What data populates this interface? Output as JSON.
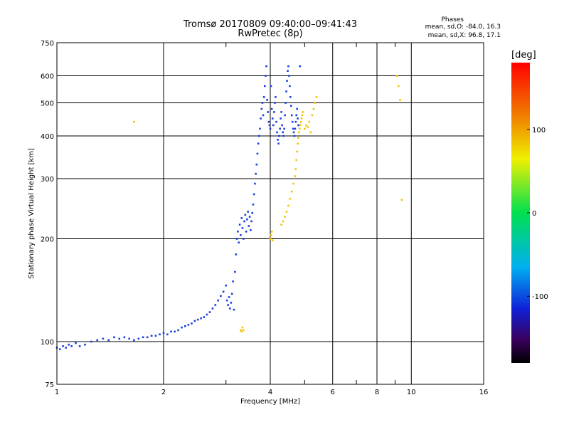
{
  "header": {
    "title_line1": "Tromsø 20170809 09:40:00–09:41:43",
    "title_line2": "RwPretec (8p)",
    "stats_title": "Phases",
    "stats_O": "mean, sd,O:  -84.0, 16.3",
    "stats_X": "mean, sd,X:  96.8, 17.1"
  },
  "colorbar": {
    "label": "[deg]",
    "tick_labels": [
      "100",
      "0",
      "-100"
    ],
    "tick_values": [
      100,
      0,
      -100
    ],
    "range": [
      -180,
      180
    ]
  },
  "colors": {
    "o_mode": "#1a3fe0",
    "x_mode": "#f2c400",
    "grid": "#000000"
  },
  "chart_data": {
    "type": "scatter",
    "xlabel": "Frequency [MHz]",
    "ylabel": "Stationary phase Virtual Height [km]",
    "xscale": "log",
    "yscale": "log",
    "xlim": [
      1,
      16
    ],
    "ylim": [
      75,
      750
    ],
    "x_ticks": [
      1,
      2,
      4,
      6,
      8,
      10,
      16
    ],
    "y_ticks": [
      75,
      100,
      200,
      300,
      400,
      500,
      600,
      750
    ],
    "grid": true,
    "series": [
      {
        "mode": "O",
        "points": [
          [
            1.0,
            96
          ],
          [
            1.02,
            95
          ],
          [
            1.04,
            97
          ],
          [
            1.06,
            96
          ],
          [
            1.08,
            98
          ],
          [
            1.1,
            97
          ],
          [
            1.13,
            99
          ],
          [
            1.16,
            97
          ],
          [
            1.2,
            98
          ],
          [
            1.25,
            100
          ],
          [
            1.3,
            101
          ],
          [
            1.35,
            102
          ],
          [
            1.4,
            101
          ],
          [
            1.45,
            103
          ],
          [
            1.5,
            102
          ],
          [
            1.55,
            103
          ],
          [
            1.6,
            102
          ],
          [
            1.65,
            101
          ],
          [
            1.7,
            102
          ],
          [
            1.75,
            103
          ],
          [
            1.8,
            103
          ],
          [
            1.85,
            104
          ],
          [
            1.9,
            104
          ],
          [
            1.95,
            105
          ],
          [
            2.0,
            106
          ],
          [
            2.05,
            105
          ],
          [
            2.1,
            107
          ],
          [
            2.15,
            107
          ],
          [
            2.2,
            108
          ],
          [
            2.25,
            110
          ],
          [
            2.3,
            111
          ],
          [
            2.35,
            112
          ],
          [
            2.4,
            113
          ],
          [
            2.45,
            115
          ],
          [
            2.5,
            116
          ],
          [
            2.55,
            117
          ],
          [
            2.6,
            118
          ],
          [
            2.65,
            120
          ],
          [
            2.7,
            122
          ],
          [
            2.75,
            125
          ],
          [
            2.8,
            128
          ],
          [
            2.85,
            132
          ],
          [
            2.9,
            136
          ],
          [
            2.95,
            140
          ],
          [
            3.0,
            146
          ],
          [
            3.02,
            132
          ],
          [
            3.04,
            128
          ],
          [
            3.06,
            135
          ],
          [
            3.08,
            125
          ],
          [
            3.1,
            130
          ],
          [
            3.12,
            138
          ],
          [
            3.14,
            150
          ],
          [
            3.16,
            124
          ],
          [
            3.18,
            160
          ],
          [
            3.2,
            180
          ],
          [
            3.22,
            200
          ],
          [
            3.24,
            210
          ],
          [
            3.26,
            195
          ],
          [
            3.28,
            220
          ],
          [
            3.3,
            205
          ],
          [
            3.32,
            230
          ],
          [
            3.34,
            215
          ],
          [
            3.36,
            200
          ],
          [
            3.38,
            225
          ],
          [
            3.4,
            235
          ],
          [
            3.42,
            210
          ],
          [
            3.44,
            228
          ],
          [
            3.46,
            240
          ],
          [
            3.48,
            218
          ],
          [
            3.5,
            232
          ],
          [
            3.52,
            212
          ],
          [
            3.54,
            225
          ],
          [
            3.56,
            238
          ],
          [
            3.58,
            252
          ],
          [
            3.6,
            270
          ],
          [
            3.62,
            290
          ],
          [
            3.64,
            310
          ],
          [
            3.66,
            330
          ],
          [
            3.68,
            355
          ],
          [
            3.7,
            380
          ],
          [
            3.72,
            400
          ],
          [
            3.74,
            420
          ],
          [
            3.76,
            450
          ],
          [
            3.78,
            480
          ],
          [
            3.8,
            500
          ],
          [
            3.82,
            460
          ],
          [
            3.84,
            520
          ],
          [
            3.86,
            560
          ],
          [
            3.88,
            600
          ],
          [
            3.9,
            640
          ],
          [
            3.92,
            510
          ],
          [
            3.94,
            470
          ],
          [
            3.96,
            440
          ],
          [
            3.98,
            430
          ],
          [
            4.0,
            420
          ],
          [
            4.02,
            560
          ],
          [
            4.04,
            480
          ],
          [
            4.06,
            450
          ],
          [
            4.08,
            430
          ],
          [
            4.1,
            470
          ],
          [
            4.12,
            500
          ],
          [
            4.14,
            520
          ],
          [
            4.16,
            440
          ],
          [
            4.18,
            410
          ],
          [
            4.2,
            390
          ],
          [
            4.22,
            380
          ],
          [
            4.24,
            400
          ],
          [
            4.26,
            420
          ],
          [
            4.28,
            450
          ],
          [
            4.3,
            470
          ],
          [
            4.32,
            430
          ],
          [
            4.34,
            410
          ],
          [
            4.36,
            400
          ],
          [
            4.38,
            420
          ],
          [
            4.4,
            460
          ],
          [
            4.42,
            500
          ],
          [
            4.44,
            540
          ],
          [
            4.46,
            580
          ],
          [
            4.48,
            620
          ],
          [
            4.5,
            640
          ],
          [
            4.52,
            600
          ],
          [
            4.54,
            560
          ],
          [
            4.56,
            520
          ],
          [
            4.58,
            490
          ],
          [
            4.6,
            460
          ],
          [
            4.62,
            440
          ],
          [
            4.64,
            420
          ],
          [
            4.66,
            410
          ],
          [
            4.68,
            400
          ],
          [
            4.7,
            420
          ],
          [
            4.72,
            440
          ],
          [
            4.74,
            460
          ],
          [
            4.76,
            480
          ],
          [
            4.78,
            450
          ],
          [
            4.8,
            430
          ],
          [
            4.85,
            640
          ]
        ]
      },
      {
        "mode": "X",
        "points": [
          [
            3.3,
            108
          ],
          [
            3.32,
            107
          ],
          [
            3.34,
            110
          ],
          [
            3.36,
            108
          ],
          [
            4.0,
            200
          ],
          [
            4.02,
            205
          ],
          [
            4.04,
            210
          ],
          [
            4.06,
            198
          ],
          [
            4.3,
            220
          ],
          [
            4.35,
            225
          ],
          [
            4.4,
            232
          ],
          [
            4.45,
            240
          ],
          [
            4.5,
            250
          ],
          [
            4.55,
            262
          ],
          [
            4.6,
            275
          ],
          [
            4.65,
            290
          ],
          [
            4.7,
            305
          ],
          [
            4.72,
            320
          ],
          [
            4.74,
            340
          ],
          [
            4.76,
            360
          ],
          [
            4.78,
            380
          ],
          [
            4.8,
            395
          ],
          [
            4.82,
            410
          ],
          [
            4.84,
            420
          ],
          [
            4.86,
            430
          ],
          [
            4.88,
            440
          ],
          [
            4.9,
            450
          ],
          [
            4.92,
            460
          ],
          [
            4.95,
            470
          ],
          [
            5.0,
            420
          ],
          [
            5.05,
            430
          ],
          [
            5.1,
            425
          ],
          [
            5.15,
            440
          ],
          [
            5.2,
            410
          ],
          [
            5.25,
            460
          ],
          [
            5.3,
            480
          ],
          [
            5.35,
            500
          ],
          [
            5.4,
            520
          ],
          [
            9.1,
            600
          ],
          [
            9.2,
            560
          ],
          [
            9.3,
            510
          ],
          [
            9.4,
            260
          ],
          [
            1.65,
            440
          ]
        ]
      }
    ]
  }
}
